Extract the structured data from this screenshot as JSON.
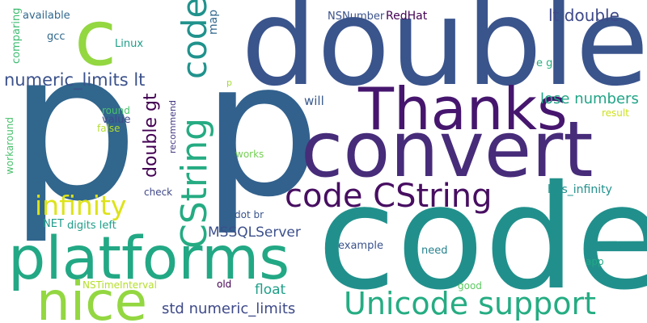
{
  "words": [
    {
      "text": "p",
      "color": "#31668d"
    },
    {
      "text": "p",
      "color": "#32618d"
    },
    {
      "text": "code",
      "color": "#21908c"
    },
    {
      "text": "double",
      "color": "#3a548c"
    },
    {
      "text": "convert",
      "color": "#472c7a"
    },
    {
      "text": "Thanks",
      "color": "#46166e"
    },
    {
      "text": "platforms",
      "color": "#22a884"
    },
    {
      "text": "nice",
      "color": "#93d741"
    },
    {
      "text": "c",
      "color": "#93d741"
    },
    {
      "text": "code CString",
      "color": "#470e61"
    },
    {
      "text": "CString",
      "color": "#25ab82"
    },
    {
      "text": "code",
      "color": "#20928c"
    },
    {
      "text": "Unicode support",
      "color": "#25ac82"
    },
    {
      "text": "infinity",
      "color": "#dde318"
    },
    {
      "text": "double gt",
      "color": "#440154"
    },
    {
      "text": "numeric_limits lt",
      "color": "#3b518b"
    },
    {
      "text": "lt double",
      "color": "#3e4989"
    },
    {
      "text": "lose numbers",
      "color": "#20a486"
    },
    {
      "text": "std numeric_limits",
      "color": "#3e4a89"
    },
    {
      "text": "MSSQLServer",
      "color": "#3c508b"
    },
    {
      "text": "float",
      "color": "#1f9f88"
    },
    {
      "text": "has_infinity",
      "color": "#21918c"
    },
    {
      "text": "NSNumber",
      "color": "#3b528b"
    },
    {
      "text": "RedHat",
      "color": "#440154"
    },
    {
      "text": "Linux",
      "color": "#1f9e89"
    },
    {
      "text": "available",
      "color": "#31688e"
    },
    {
      "text": "gcc",
      "color": "#30698e"
    },
    {
      "text": "comparing",
      "color": "#3fbc73"
    },
    {
      "text": "map",
      "color": "#31688e"
    },
    {
      "text": "will",
      "color": "#38598c"
    },
    {
      "text": "e g",
      "color": "#29af7f"
    },
    {
      "text": "round",
      "color": "#4ac16d"
    },
    {
      "text": "value",
      "color": "#3e4989"
    },
    {
      "text": "false",
      "color": "#b5de2b"
    },
    {
      "text": "recommend",
      "color": "#453781"
    },
    {
      "text": "workaround",
      "color": "#4ac16d"
    },
    {
      "text": "works",
      "color": "#75d054"
    },
    {
      "text": "result",
      "color": "#cde11d"
    },
    {
      "text": "check",
      "color": "#3f4788"
    },
    {
      "text": "NET",
      "color": "#1f9a8a"
    },
    {
      "text": "digits left",
      "color": "#1f9e89"
    },
    {
      "text": "dot br",
      "color": "#3a548c"
    },
    {
      "text": "example",
      "color": "#3b528b"
    },
    {
      "text": "need",
      "color": "#26828e"
    },
    {
      "text": "app",
      "color": "#22a785"
    },
    {
      "text": "good",
      "color": "#5ec962"
    },
    {
      "text": "old",
      "color": "#440154"
    },
    {
      "text": "NSTimeInterval",
      "color": "#b5de2b"
    },
    {
      "text": "p",
      "color": "#a5db36"
    }
  ]
}
